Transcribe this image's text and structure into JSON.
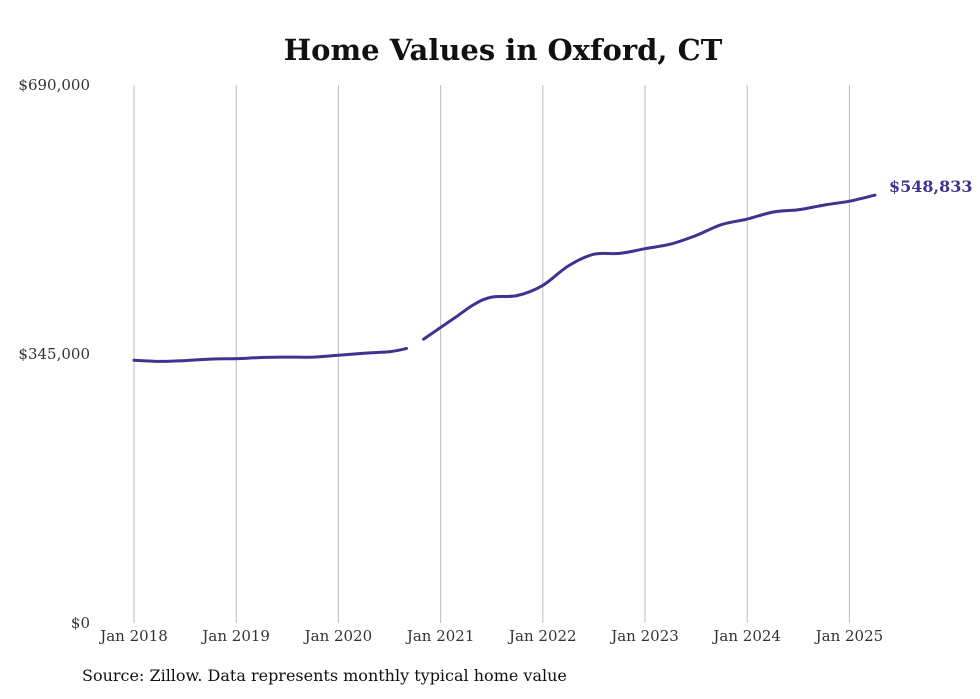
{
  "chart_data": {
    "type": "line",
    "title": "Home Values in Oxford, CT",
    "xlabel": "",
    "ylabel": "",
    "ylim": [
      0,
      690000
    ],
    "y_ticks": [
      {
        "value": 0,
        "label": "$0"
      },
      {
        "value": 345000,
        "label": "$345,000"
      },
      {
        "value": 690000,
        "label": "$690,000"
      }
    ],
    "x_ticks": [
      {
        "value": "2018-01",
        "label": "Jan 2018"
      },
      {
        "value": "2019-01",
        "label": "Jan 2019"
      },
      {
        "value": "2020-01",
        "label": "Jan 2020"
      },
      {
        "value": "2021-01",
        "label": "Jan 2021"
      },
      {
        "value": "2022-01",
        "label": "Jan 2022"
      },
      {
        "value": "2023-01",
        "label": "Jan 2023"
      },
      {
        "value": "2024-01",
        "label": "Jan 2024"
      },
      {
        "value": "2025-01",
        "label": "Jan 2025"
      }
    ],
    "grid": "vertical",
    "line_color": "#3f3290",
    "end_label": "$548,833",
    "series": [
      {
        "segments": [
          [
            {
              "x": "2018-01",
              "y": 337000
            },
            {
              "x": "2018-04",
              "y": 335500
            },
            {
              "x": "2018-07",
              "y": 336500
            },
            {
              "x": "2018-10",
              "y": 338500
            },
            {
              "x": "2019-01",
              "y": 339000
            },
            {
              "x": "2019-04",
              "y": 340500
            },
            {
              "x": "2019-07",
              "y": 341000
            },
            {
              "x": "2019-10",
              "y": 341000
            },
            {
              "x": "2020-01",
              "y": 343500
            },
            {
              "x": "2020-04",
              "y": 346000
            },
            {
              "x": "2020-07",
              "y": 348000
            },
            {
              "x": "2020-09",
              "y": 352000
            }
          ],
          [
            {
              "x": "2020-11",
              "y": 364000
            },
            {
              "x": "2021-01",
              "y": 379000
            },
            {
              "x": "2021-03",
              "y": 394000
            },
            {
              "x": "2021-05",
              "y": 409000
            },
            {
              "x": "2021-07",
              "y": 418000
            },
            {
              "x": "2021-10",
              "y": 420000
            },
            {
              "x": "2022-01",
              "y": 433000
            },
            {
              "x": "2022-04",
              "y": 458000
            },
            {
              "x": "2022-07",
              "y": 473000
            },
            {
              "x": "2022-10",
              "y": 474000
            },
            {
              "x": "2023-01",
              "y": 480000
            },
            {
              "x": "2023-04",
              "y": 486000
            },
            {
              "x": "2023-07",
              "y": 497000
            },
            {
              "x": "2023-10",
              "y": 511000
            },
            {
              "x": "2024-01",
              "y": 518000
            },
            {
              "x": "2024-04",
              "y": 527000
            },
            {
              "x": "2024-07",
              "y": 530000
            },
            {
              "x": "2024-10",
              "y": 536000
            },
            {
              "x": "2025-01",
              "y": 541000
            },
            {
              "x": "2025-04",
              "y": 548833
            }
          ]
        ]
      }
    ]
  },
  "source_text": "Source: Zillow. Data represents monthly typical home value"
}
